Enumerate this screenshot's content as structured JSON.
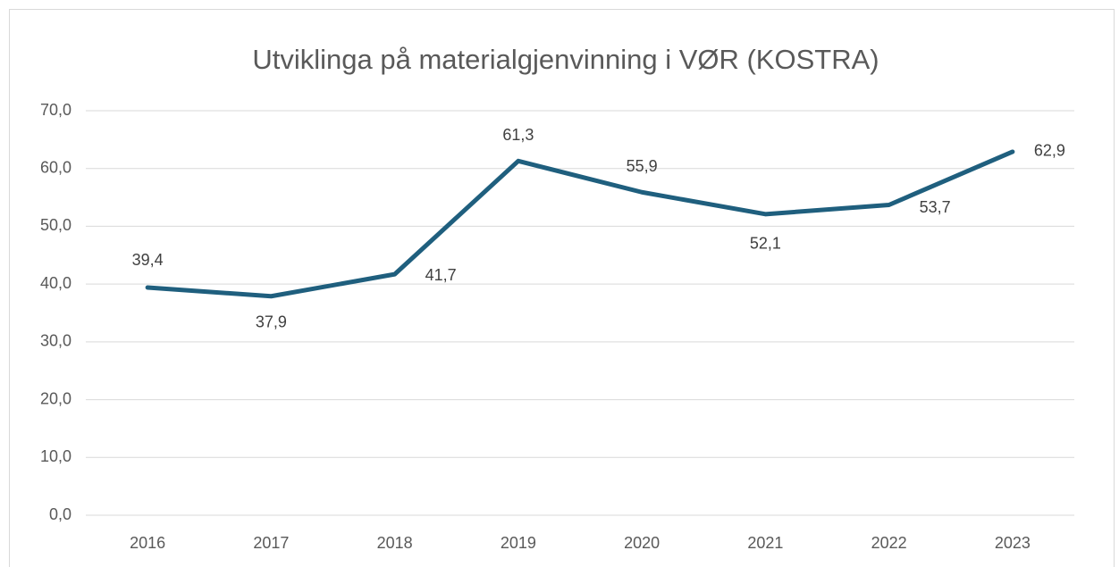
{
  "chart_data": {
    "type": "line",
    "title": "Utviklinga på materialgjenvinning i VØR (KOSTRA)",
    "categories": [
      "2016",
      "2017",
      "2018",
      "2019",
      "2020",
      "2021",
      "2022",
      "2023"
    ],
    "series": [
      {
        "color": "#1f5f7e",
        "values": [
          39.4,
          37.9,
          41.7,
          61.3,
          55.9,
          52.1,
          53.7,
          62.9
        ],
        "value_labels": [
          "39,4",
          "37,9",
          "41,7",
          "61,3",
          "55,9",
          "52,1",
          "53,7",
          "62,9"
        ]
      }
    ],
    "ylim": [
      0,
      70
    ],
    "yticks": [
      {
        "value": 0,
        "label": "0,0"
      },
      {
        "value": 10,
        "label": "10,0"
      },
      {
        "value": 20,
        "label": "20,0"
      },
      {
        "value": 30,
        "label": "30,0"
      },
      {
        "value": 40,
        "label": "40,0"
      },
      {
        "value": 50,
        "label": "50,0"
      },
      {
        "value": 60,
        "label": "60,0"
      },
      {
        "value": 70,
        "label": "70,0"
      }
    ],
    "grid": true
  }
}
